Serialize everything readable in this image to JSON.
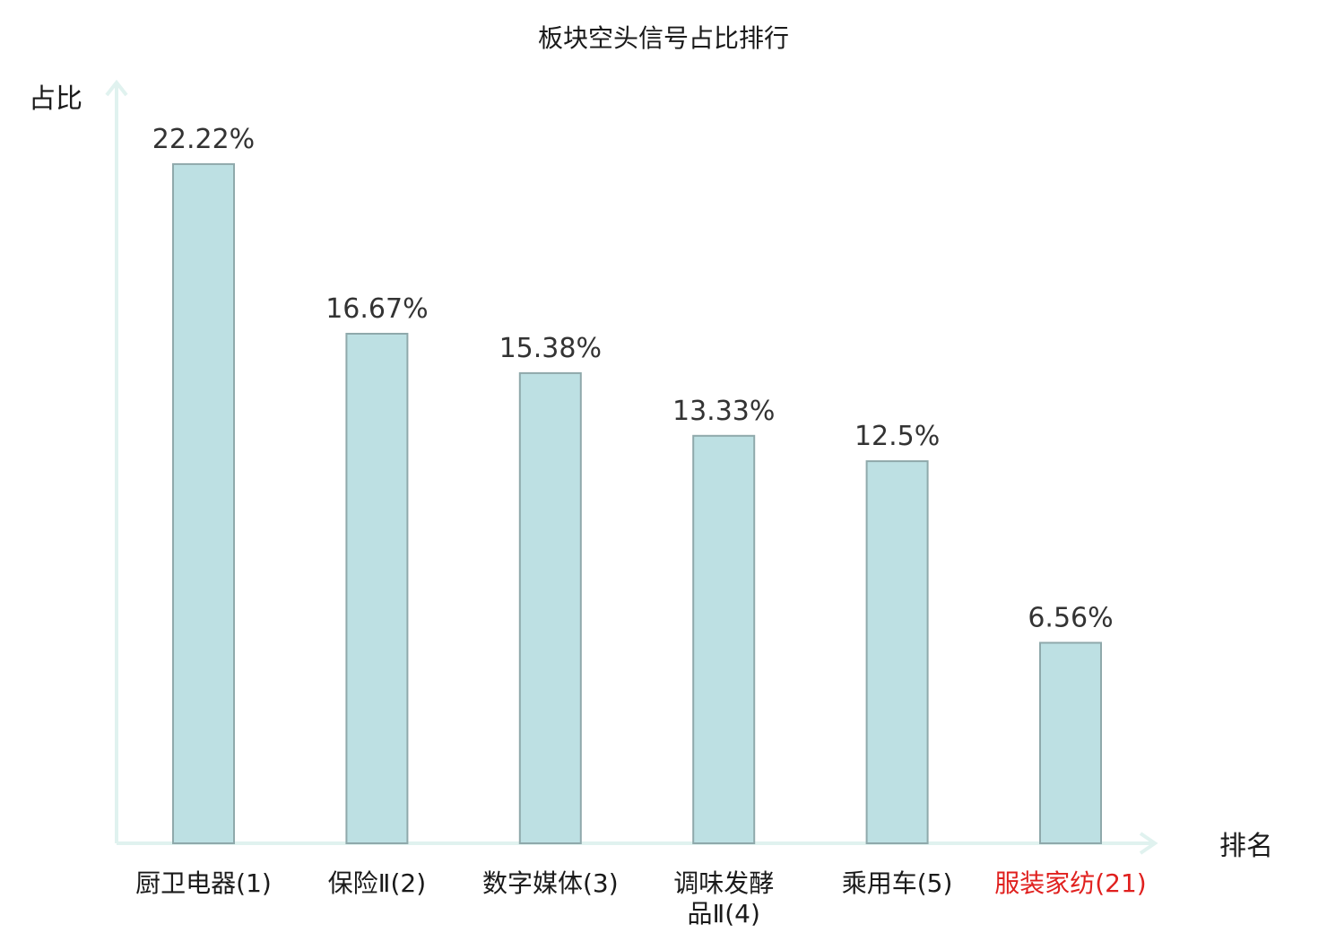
{
  "chart_data": {
    "type": "bar",
    "title": "板块空头信号占比排行",
    "ylabel": "占比",
    "xlabel": "排名",
    "ylim": [
      0,
      24.3
    ],
    "grid": false,
    "categories": [
      [
        "厨卫电器(1)"
      ],
      [
        "保险Ⅱ(2)"
      ],
      [
        "数字媒体(3)"
      ],
      [
        "调味发酵",
        "品Ⅱ(4)"
      ],
      [
        "乘用车(5)"
      ],
      [
        "服装家纺(21)"
      ]
    ],
    "values": [
      22.22,
      16.67,
      15.38,
      13.33,
      12.5,
      6.56
    ],
    "value_labels": [
      "22.22%",
      "16.67%",
      "15.38%",
      "13.33%",
      "12.5%",
      "6.56%"
    ],
    "highlight_index": 5,
    "colors": {
      "bar_fill": "#bde0e3",
      "bar_stroke": "#8fa9ab",
      "axis": "#e0f2ef",
      "text": "#1a1a1a",
      "value_text": "#333333",
      "highlight_text": "#e0201e"
    }
  }
}
